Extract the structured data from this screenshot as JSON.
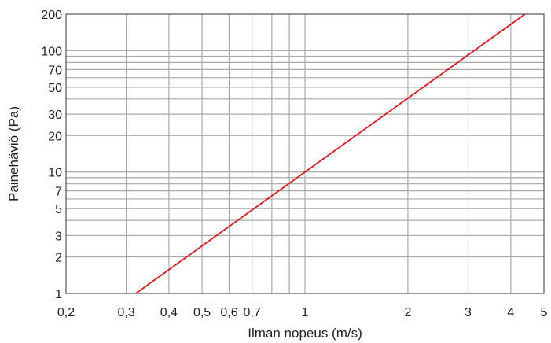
{
  "chart_data": {
    "type": "line",
    "x_scale": "log",
    "y_scale": "log",
    "xlabel": "Ilman nopeus (m/s)",
    "ylabel": "Painehäviö (Pa)",
    "xlim": [
      0.2,
      5
    ],
    "ylim": [
      1,
      200
    ],
    "x_gridlines": [
      0.3,
      0.4,
      0.5,
      0.6,
      0.7,
      0.8,
      0.9,
      1,
      2,
      3,
      4
    ],
    "y_gridlines": [
      2,
      3,
      4,
      5,
      6,
      7,
      8,
      9,
      10,
      20,
      30,
      40,
      50,
      60,
      70,
      80,
      90,
      100
    ],
    "x_ticks": [
      {
        "value": 0.2,
        "label": "0,2"
      },
      {
        "value": 0.3,
        "label": "0,3"
      },
      {
        "value": 0.4,
        "label": "0,4"
      },
      {
        "value": 0.5,
        "label": "0,5"
      },
      {
        "value": 0.6,
        "label": "0,6"
      },
      {
        "value": 0.7,
        "label": "0,7"
      },
      {
        "value": 1,
        "label": "1"
      },
      {
        "value": 2,
        "label": "2"
      },
      {
        "value": 3,
        "label": "3"
      },
      {
        "value": 4,
        "label": "4"
      },
      {
        "value": 5,
        "label": "5"
      }
    ],
    "y_ticks": [
      {
        "value": 1,
        "label": "1"
      },
      {
        "value": 2,
        "label": "2"
      },
      {
        "value": 3,
        "label": "3"
      },
      {
        "value": 5,
        "label": "5"
      },
      {
        "value": 7,
        "label": "7"
      },
      {
        "value": 10,
        "label": "10"
      },
      {
        "value": 20,
        "label": "20"
      },
      {
        "value": 30,
        "label": "30"
      },
      {
        "value": 50,
        "label": "50"
      },
      {
        "value": 70,
        "label": "70"
      },
      {
        "value": 100,
        "label": "100"
      },
      {
        "value": 200,
        "label": "200"
      }
    ],
    "grid": true,
    "series": [
      {
        "color": "#e8141b",
        "x": [
          0.32,
          4.4
        ],
        "y": [
          1,
          200
        ]
      }
    ],
    "colors": {
      "grid": "#a9a9a9",
      "frame": "#333333"
    }
  }
}
